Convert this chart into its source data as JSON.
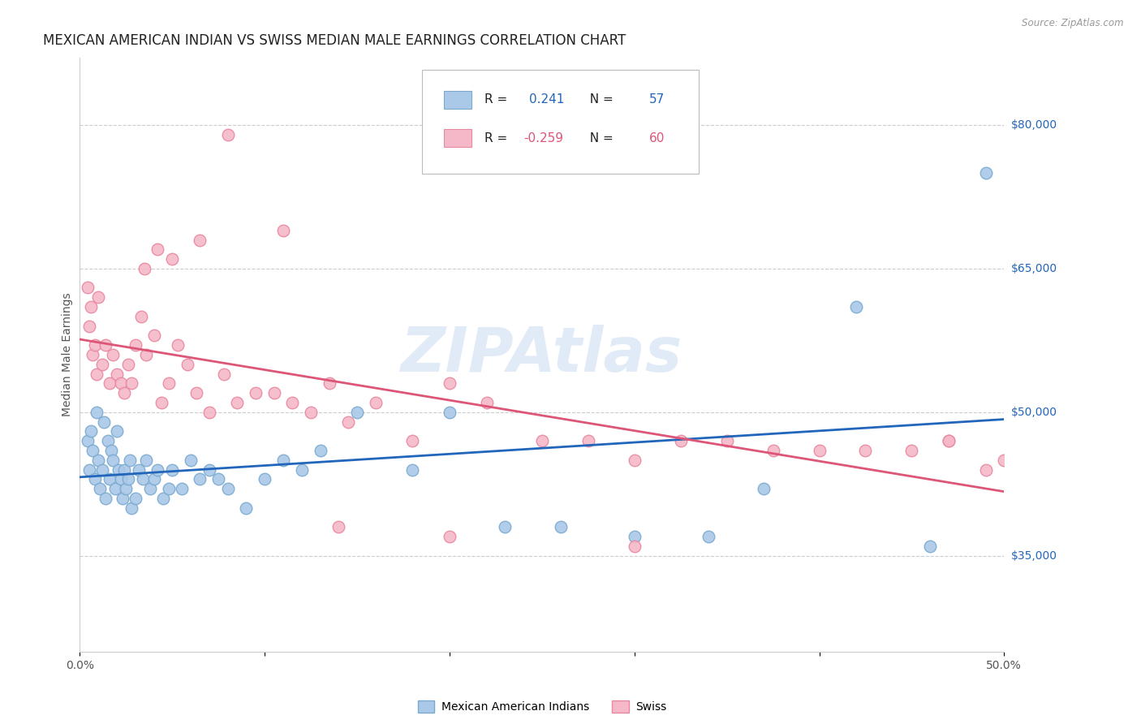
{
  "title": "MEXICAN AMERICAN INDIAN VS SWISS MEDIAN MALE EARNINGS CORRELATION CHART",
  "source": "Source: ZipAtlas.com",
  "ylabel": "Median Male Earnings",
  "yticks": [
    35000,
    50000,
    65000,
    80000
  ],
  "ytick_labels": [
    "$35,000",
    "$50,000",
    "$65,000",
    "$80,000"
  ],
  "xlim": [
    0.0,
    0.5
  ],
  "ylim": [
    25000,
    87000
  ],
  "watermark": "ZIPAtlas",
  "blue_scatter_x": [
    0.004,
    0.005,
    0.006,
    0.007,
    0.008,
    0.009,
    0.01,
    0.011,
    0.012,
    0.013,
    0.014,
    0.015,
    0.016,
    0.017,
    0.018,
    0.019,
    0.02,
    0.021,
    0.022,
    0.023,
    0.024,
    0.025,
    0.026,
    0.027,
    0.028,
    0.03,
    0.032,
    0.034,
    0.036,
    0.038,
    0.04,
    0.042,
    0.045,
    0.048,
    0.05,
    0.055,
    0.06,
    0.065,
    0.07,
    0.075,
    0.08,
    0.09,
    0.1,
    0.11,
    0.12,
    0.13,
    0.15,
    0.18,
    0.2,
    0.23,
    0.26,
    0.3,
    0.34,
    0.37,
    0.42,
    0.46,
    0.49
  ],
  "blue_scatter_y": [
    47000,
    44000,
    48000,
    46000,
    43000,
    50000,
    45000,
    42000,
    44000,
    49000,
    41000,
    47000,
    43000,
    46000,
    45000,
    42000,
    48000,
    44000,
    43000,
    41000,
    44000,
    42000,
    43000,
    45000,
    40000,
    41000,
    44000,
    43000,
    45000,
    42000,
    43000,
    44000,
    41000,
    42000,
    44000,
    42000,
    45000,
    43000,
    44000,
    43000,
    42000,
    40000,
    43000,
    45000,
    44000,
    46000,
    50000,
    44000,
    50000,
    38000,
    38000,
    37000,
    37000,
    42000,
    61000,
    36000,
    75000
  ],
  "pink_scatter_x": [
    0.004,
    0.005,
    0.006,
    0.007,
    0.008,
    0.009,
    0.01,
    0.012,
    0.014,
    0.016,
    0.018,
    0.02,
    0.022,
    0.024,
    0.026,
    0.028,
    0.03,
    0.033,
    0.036,
    0.04,
    0.044,
    0.048,
    0.053,
    0.058,
    0.063,
    0.07,
    0.078,
    0.085,
    0.095,
    0.105,
    0.115,
    0.125,
    0.135,
    0.145,
    0.16,
    0.18,
    0.2,
    0.22,
    0.25,
    0.275,
    0.3,
    0.325,
    0.35,
    0.375,
    0.4,
    0.425,
    0.45,
    0.47,
    0.49,
    0.5,
    0.035,
    0.042,
    0.05,
    0.065,
    0.08,
    0.11,
    0.14,
    0.2,
    0.3,
    0.47
  ],
  "pink_scatter_y": [
    63000,
    59000,
    61000,
    56000,
    57000,
    54000,
    62000,
    55000,
    57000,
    53000,
    56000,
    54000,
    53000,
    52000,
    55000,
    53000,
    57000,
    60000,
    56000,
    58000,
    51000,
    53000,
    57000,
    55000,
    52000,
    50000,
    54000,
    51000,
    52000,
    52000,
    51000,
    50000,
    53000,
    49000,
    51000,
    47000,
    53000,
    51000,
    47000,
    47000,
    45000,
    47000,
    47000,
    46000,
    46000,
    46000,
    46000,
    47000,
    44000,
    45000,
    65000,
    67000,
    66000,
    68000,
    79000,
    69000,
    38000,
    37000,
    36000,
    47000
  ],
  "blue_line_color": "#2266bb",
  "pink_line_color": "#dd5577",
  "blue_dot_color": "#aac8e8",
  "pink_dot_color": "#f5b8c8",
  "blue_dot_edge": "#7aaad0",
  "pink_dot_edge": "#e888a0",
  "grid_color": "#cccccc",
  "background_color": "#ffffff",
  "title_fontsize": 12,
  "axis_label_fontsize": 10,
  "tick_fontsize": 10,
  "ytick_color": "#2266bb",
  "legend_label1": "Mexican American Indians",
  "legend_label2": "Swiss",
  "legend_r1": "0.241",
  "legend_n1": "57",
  "legend_r2": "-0.259",
  "legend_n2": "60"
}
